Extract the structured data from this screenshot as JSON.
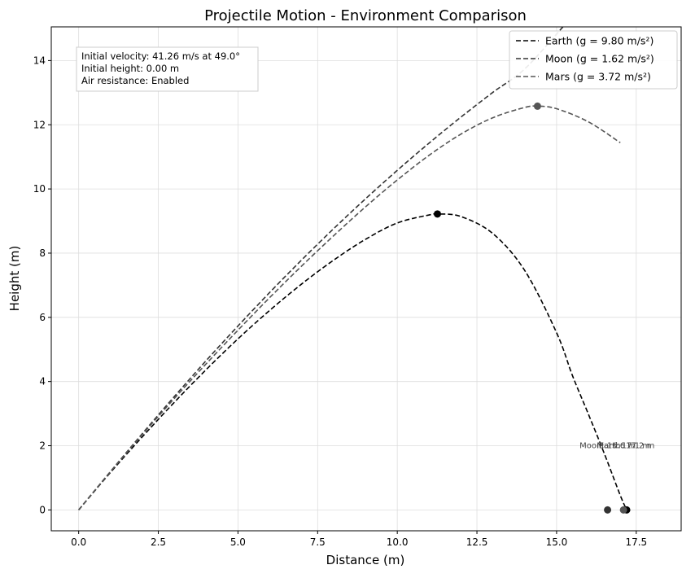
{
  "chart_data": {
    "type": "line",
    "title": "Projectile Motion - Environment Comparison",
    "xlabel": "Distance (m)",
    "ylabel": "Height (m)",
    "xlim": [
      -0.86,
      18.91
    ],
    "ylim": [
      -0.65,
      15.05
    ],
    "xticks": [
      0.0,
      2.5,
      5.0,
      7.5,
      10.0,
      12.5,
      15.0,
      17.5
    ],
    "xtick_labels": [
      "0.0",
      "2.5",
      "5.0",
      "7.5",
      "10.0",
      "12.5",
      "15.0",
      "17.5"
    ],
    "yticks": [
      0,
      2,
      4,
      6,
      8,
      10,
      12,
      14
    ],
    "ytick_labels": [
      "0",
      "2",
      "4",
      "6",
      "8",
      "10",
      "12",
      "14"
    ],
    "grid": true,
    "legend_position": "top-right",
    "info_box": {
      "position": "top-left",
      "lines": [
        "Initial velocity: 41.26 m/s at 49.0°",
        "Initial height: 0.00 m",
        "Air resistance: Enabled"
      ]
    },
    "series": [
      {
        "name": "Earth (g = 9.80 m/s²)",
        "color": "#000000",
        "style": "dashed",
        "x": [
          0,
          1,
          2,
          3,
          4,
          5,
          6,
          7,
          8,
          9,
          10,
          11,
          11.3,
          12,
          13,
          14,
          15,
          15.5,
          16,
          16.5,
          17.0,
          17.2
        ],
        "y": [
          0,
          1.17,
          2.28,
          3.35,
          4.37,
          5.33,
          6.22,
          7.04,
          7.78,
          8.43,
          8.94,
          9.19,
          9.22,
          9.14,
          8.61,
          7.46,
          5.52,
          4.18,
          2.98,
          1.75,
          0.45,
          0.0
        ],
        "apex": {
          "x": 11.26,
          "y": 9.22
        },
        "landing": {
          "x": 17.2,
          "y": 0
        }
      },
      {
        "name": "Moon (g = 1.62 m/s²)",
        "color": "#333333",
        "style": "dashed",
        "x": [
          0,
          1,
          2,
          3,
          4,
          5,
          6,
          7,
          8,
          9,
          10,
          11,
          12,
          13,
          14,
          15.2
        ],
        "y": [
          0,
          1.2,
          2.38,
          3.53,
          4.65,
          5.73,
          6.78,
          7.79,
          8.76,
          9.69,
          10.58,
          11.43,
          12.24,
          13.01,
          13.74,
          15.05
        ],
        "landing": {
          "x": 16.6,
          "y": 0
        }
      },
      {
        "name": "Mars (g = 3.72 m/s²)",
        "color": "#555555",
        "style": "dashed",
        "x": [
          0,
          1,
          2,
          3,
          4,
          5,
          6,
          7,
          8,
          9,
          10,
          11,
          12,
          13,
          14,
          14.4,
          15,
          16,
          17.0
        ],
        "y": [
          0,
          1.19,
          2.35,
          3.47,
          4.55,
          5.6,
          6.62,
          7.6,
          8.54,
          9.44,
          10.28,
          11.05,
          11.71,
          12.22,
          12.54,
          12.58,
          12.5,
          12.09,
          11.44
        ],
        "apex": {
          "x": 14.4,
          "y": 12.58
        },
        "landing": {
          "x": 17.1,
          "y": 0
        }
      }
    ],
    "annotations": [
      {
        "text": "Moon: 16.6 m",
        "x": 16.6,
        "y": 2.0
      },
      {
        "text": "Mars: 17.1 m",
        "x": 17.1,
        "y": 2.0
      },
      {
        "text": "Earth: 17.2 m",
        "x": 17.2,
        "y": 2.0
      }
    ]
  }
}
